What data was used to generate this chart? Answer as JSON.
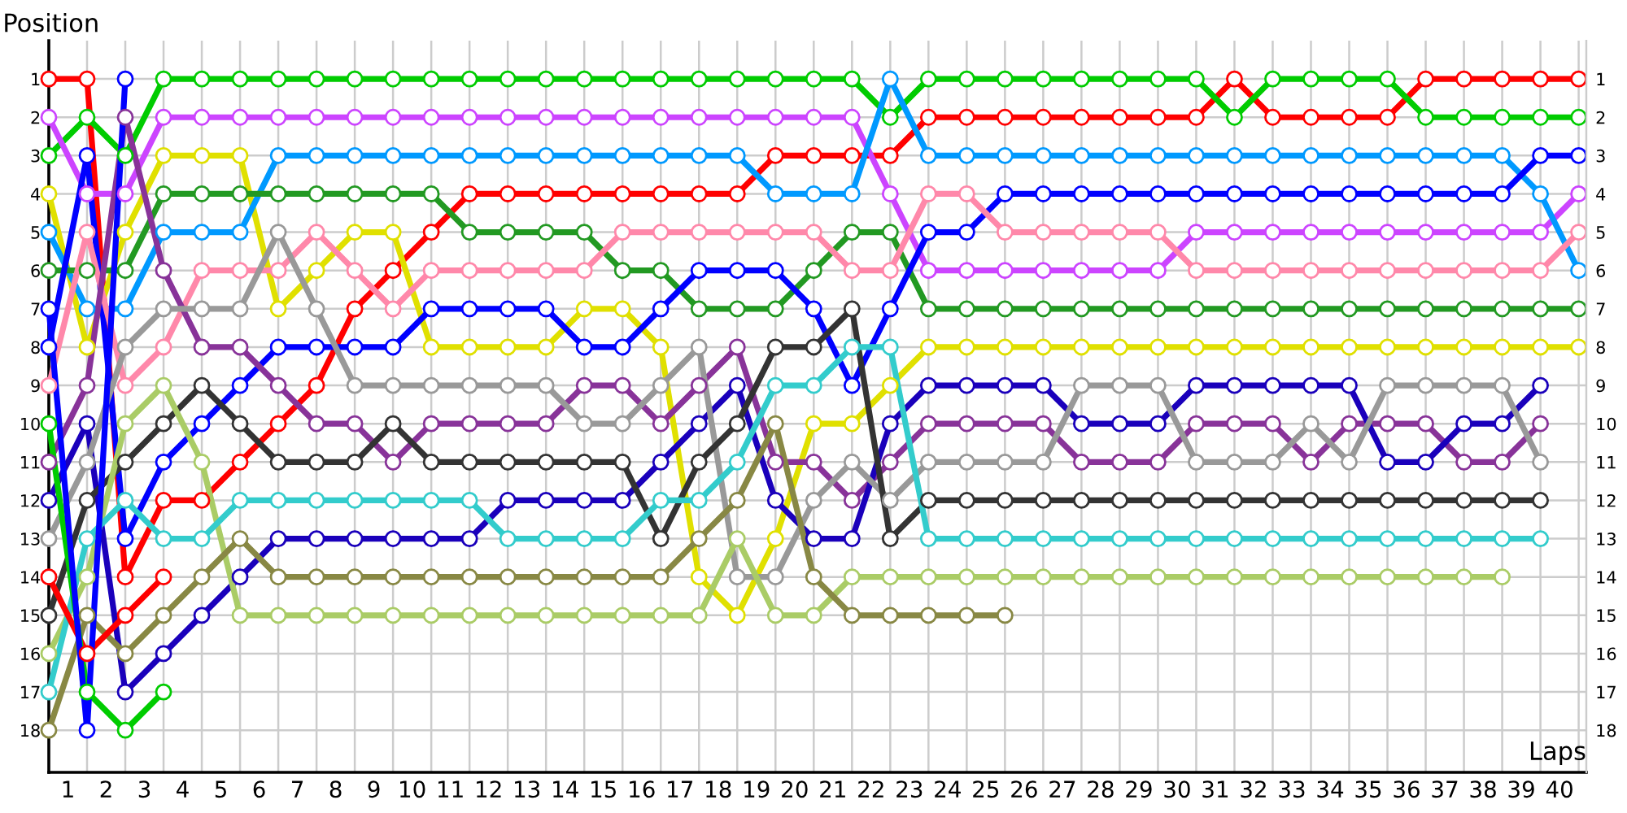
{
  "chart_data": {
    "type": "line",
    "xlabel": "Laps",
    "ylabel": "Position",
    "marker": "circle",
    "line_style": "solid",
    "grid": true,
    "x": [
      0,
      1,
      2,
      3,
      4,
      5,
      6,
      7,
      8,
      9,
      10,
      11,
      12,
      13,
      14,
      15,
      16,
      17,
      18,
      19,
      20,
      21,
      22,
      23,
      24,
      25,
      26,
      27,
      28,
      29,
      30,
      31,
      32,
      33,
      34,
      35,
      36,
      37,
      38,
      39,
      40
    ],
    "xlim": [
      0,
      40.2
    ],
    "xticks": [
      {
        "value": 0.5,
        "label": "1"
      },
      {
        "value": 1.5,
        "label": "2"
      },
      {
        "value": 2.5,
        "label": "3"
      },
      {
        "value": 3.5,
        "label": "4"
      },
      {
        "value": 4.5,
        "label": "5"
      },
      {
        "value": 5.5,
        "label": "6"
      },
      {
        "value": 6.5,
        "label": "7"
      },
      {
        "value": 7.5,
        "label": "8"
      },
      {
        "value": 8.5,
        "label": "9"
      },
      {
        "value": 9.5,
        "label": "10"
      },
      {
        "value": 10.5,
        "label": "11"
      },
      {
        "value": 11.5,
        "label": "12"
      },
      {
        "value": 12.5,
        "label": "13"
      },
      {
        "value": 13.5,
        "label": "14"
      },
      {
        "value": 14.5,
        "label": "15"
      },
      {
        "value": 15.5,
        "label": "16"
      },
      {
        "value": 16.5,
        "label": "17"
      },
      {
        "value": 17.5,
        "label": "18"
      },
      {
        "value": 18.5,
        "label": "19"
      },
      {
        "value": 19.5,
        "label": "20"
      },
      {
        "value": 20.5,
        "label": "21"
      },
      {
        "value": 21.5,
        "label": "22"
      },
      {
        "value": 22.5,
        "label": "23"
      },
      {
        "value": 23.5,
        "label": "24"
      },
      {
        "value": 24.5,
        "label": "25"
      },
      {
        "value": 25.5,
        "label": "26"
      },
      {
        "value": 26.5,
        "label": "27"
      },
      {
        "value": 27.5,
        "label": "28"
      },
      {
        "value": 28.5,
        "label": "29"
      },
      {
        "value": 29.5,
        "label": "30"
      },
      {
        "value": 30.5,
        "label": "31"
      },
      {
        "value": 31.5,
        "label": "32"
      },
      {
        "value": 32.5,
        "label": "33"
      },
      {
        "value": 33.5,
        "label": "34"
      },
      {
        "value": 34.5,
        "label": "35"
      },
      {
        "value": 35.5,
        "label": "36"
      },
      {
        "value": 36.5,
        "label": "37"
      },
      {
        "value": 37.5,
        "label": "38"
      },
      {
        "value": 38.5,
        "label": "39"
      },
      {
        "value": 39.5,
        "label": "40"
      },
      {
        "value": 1,
        "label": null
      },
      {
        "value": 2,
        "label": null
      },
      {
        "value": 3,
        "label": null
      },
      {
        "value": 4,
        "label": null
      },
      {
        "value": 5,
        "label": null
      },
      {
        "value": 6,
        "label": null
      },
      {
        "value": 7,
        "label": null
      },
      {
        "value": 8,
        "label": null
      },
      {
        "value": 9,
        "label": null
      },
      {
        "value": 10,
        "label": null
      },
      {
        "value": 11,
        "label": null
      },
      {
        "value": 12,
        "label": null
      },
      {
        "value": 13,
        "label": null
      },
      {
        "value": 14,
        "label": null
      },
      {
        "value": 15,
        "label": null
      },
      {
        "value": 16,
        "label": null
      },
      {
        "value": 17,
        "label": null
      },
      {
        "value": 18,
        "label": null
      },
      {
        "value": 19,
        "label": null
      },
      {
        "value": 20,
        "label": null
      },
      {
        "value": 21,
        "label": null
      },
      {
        "value": 22,
        "label": null
      },
      {
        "value": 23,
        "label": null
      },
      {
        "value": 24,
        "label": null
      },
      {
        "value": 25,
        "label": null
      },
      {
        "value": 26,
        "label": null
      },
      {
        "value": 27,
        "label": null
      },
      {
        "value": 28,
        "label": null
      },
      {
        "value": 29,
        "label": null
      },
      {
        "value": 30,
        "label": null
      },
      {
        "value": 31,
        "label": null
      },
      {
        "value": 32,
        "label": null
      },
      {
        "value": 33,
        "label": null
      },
      {
        "value": 34,
        "label": null
      },
      {
        "value": 35,
        "label": null
      },
      {
        "value": 36,
        "label": null
      },
      {
        "value": 37,
        "label": null
      },
      {
        "value": 38,
        "label": null
      },
      {
        "value": 39,
        "label": null
      },
      {
        "value": 40,
        "label": null
      }
    ],
    "ylim": [
      19.1,
      0
    ],
    "yticks": [
      1,
      2,
      3,
      4,
      5,
      6,
      7,
      8,
      9,
      10,
      11,
      12,
      13,
      14,
      15,
      16,
      17,
      18
    ],
    "y2lim": [
      19.1,
      0
    ],
    "y2ticks": [
      1,
      2,
      3,
      4,
      5,
      6,
      7,
      8,
      9,
      10,
      11,
      12,
      13,
      14,
      15,
      16,
      17,
      18
    ],
    "series": [
      {
        "color": "#ff0000",
        "values": [
          1,
          1,
          14,
          12,
          12,
          11,
          10,
          9,
          7,
          6,
          5,
          4,
          4,
          4,
          4,
          4,
          4,
          4,
          4,
          3,
          3,
          3,
          3,
          2,
          2,
          2,
          2,
          2,
          2,
          2,
          2,
          1,
          2,
          2,
          2,
          2,
          1,
          1,
          1,
          1,
          1
        ]
      },
      {
        "color": "#00cc00",
        "values": [
          3,
          2,
          3,
          1,
          1,
          1,
          1,
          1,
          1,
          1,
          1,
          1,
          1,
          1,
          1,
          1,
          1,
          1,
          1,
          1,
          1,
          1,
          2,
          1,
          1,
          1,
          1,
          1,
          1,
          1,
          1,
          2,
          1,
          1,
          1,
          1,
          2,
          2,
          2,
          2,
          2
        ]
      },
      {
        "color": "#cc44ff",
        "values": [
          2,
          4,
          4,
          2,
          2,
          2,
          2,
          2,
          2,
          2,
          2,
          2,
          2,
          2,
          2,
          2,
          2,
          2,
          2,
          2,
          2,
          2,
          4,
          6,
          6,
          6,
          6,
          6,
          6,
          6,
          5,
          5,
          5,
          5,
          5,
          5,
          5,
          5,
          5,
          5,
          4
        ]
      },
      {
        "color": "#e0e000",
        "values": [
          4,
          8,
          5,
          3,
          3,
          3,
          7,
          6,
          5,
          5,
          8,
          8,
          8,
          8,
          7,
          7,
          8,
          14,
          15,
          13,
          10,
          10,
          9,
          8,
          8,
          8,
          8,
          8,
          8,
          8,
          8,
          8,
          8,
          8,
          8,
          8,
          8,
          8,
          8,
          8,
          8
        ]
      },
      {
        "color": "#0099ff",
        "values": [
          5,
          7,
          7,
          5,
          5,
          5,
          3,
          3,
          3,
          3,
          3,
          3,
          3,
          3,
          3,
          3,
          3,
          3,
          3,
          4,
          4,
          4,
          1,
          3,
          3,
          3,
          3,
          3,
          3,
          3,
          3,
          3,
          3,
          3,
          3,
          3,
          3,
          3,
          3,
          4,
          6
        ]
      },
      {
        "color": "#229922",
        "values": [
          6,
          6,
          6,
          4,
          4,
          4,
          4,
          4,
          4,
          4,
          4,
          5,
          5,
          5,
          5,
          6,
          6,
          7,
          7,
          7,
          6,
          5,
          5,
          7,
          7,
          7,
          7,
          7,
          7,
          7,
          7,
          7,
          7,
          7,
          7,
          7,
          7,
          7,
          7,
          7,
          7
        ]
      },
      {
        "color": "#0000ff",
        "values": [
          8,
          3,
          13,
          11,
          10,
          9,
          8,
          8,
          8,
          8,
          7,
          7,
          7,
          7,
          8,
          8,
          7,
          6,
          6,
          6,
          7,
          9,
          7,
          5,
          5,
          4,
          4,
          4,
          4,
          4,
          4,
          4,
          4,
          4,
          4,
          4,
          4,
          4,
          4,
          3,
          3
        ]
      },
      {
        "color": "#ff88aa",
        "values": [
          9,
          5,
          9,
          8,
          6,
          6,
          6,
          5,
          6,
          7,
          6,
          6,
          6,
          6,
          6,
          5,
          5,
          5,
          5,
          5,
          5,
          6,
          6,
          4,
          4,
          5,
          5,
          5,
          5,
          5,
          6,
          6,
          6,
          6,
          6,
          6,
          6,
          6,
          6,
          6,
          5
        ]
      },
      {
        "color": "#883399",
        "values": [
          11,
          9,
          2,
          6,
          8,
          8,
          9,
          10,
          10,
          11,
          10,
          10,
          10,
          10,
          9,
          9,
          10,
          9,
          8,
          11,
          11,
          12,
          11,
          10,
          10,
          10,
          10,
          11,
          11,
          11,
          10,
          10,
          10,
          11,
          10,
          10,
          10,
          11,
          11,
          10,
          null
        ]
      },
      {
        "color": "#1a00bb",
        "values": [
          12,
          10,
          17,
          16,
          15,
          14,
          13,
          13,
          13,
          13,
          13,
          13,
          12,
          12,
          12,
          12,
          11,
          10,
          9,
          12,
          13,
          13,
          10,
          9,
          9,
          9,
          9,
          10,
          10,
          10,
          9,
          9,
          9,
          9,
          9,
          11,
          11,
          10,
          10,
          9,
          null
        ]
      },
      {
        "color": "#999999",
        "values": [
          13,
          11,
          8,
          7,
          7,
          7,
          5,
          7,
          9,
          9,
          9,
          9,
          9,
          9,
          10,
          10,
          9,
          8,
          14,
          14,
          12,
          11,
          12,
          11,
          11,
          11,
          11,
          9,
          9,
          9,
          11,
          11,
          11,
          10,
          11,
          9,
          9,
          9,
          9,
          11,
          null
        ]
      },
      {
        "color": "#333333",
        "values": [
          15,
          12,
          11,
          10,
          9,
          10,
          11,
          11,
          11,
          10,
          11,
          11,
          11,
          11,
          11,
          11,
          13,
          11,
          10,
          8,
          8,
          7,
          13,
          12,
          12,
          12,
          12,
          12,
          12,
          12,
          12,
          12,
          12,
          12,
          12,
          12,
          12,
          12,
          12,
          12,
          null
        ]
      },
      {
        "color": "#aacc66",
        "values": [
          16,
          14,
          10,
          9,
          11,
          15,
          15,
          15,
          15,
          15,
          15,
          15,
          15,
          15,
          15,
          15,
          15,
          15,
          13,
          15,
          15,
          14,
          14,
          14,
          14,
          14,
          14,
          14,
          14,
          14,
          14,
          14,
          14,
          14,
          14,
          14,
          14,
          14,
          14,
          null,
          null
        ]
      },
      {
        "color": "#33cccc",
        "values": [
          17,
          13,
          12,
          13,
          13,
          12,
          12,
          12,
          12,
          12,
          12,
          12,
          13,
          13,
          13,
          13,
          12,
          12,
          11,
          9,
          9,
          8,
          8,
          13,
          13,
          13,
          13,
          13,
          13,
          13,
          13,
          13,
          13,
          13,
          13,
          13,
          13,
          13,
          13,
          13,
          null
        ]
      },
      {
        "color": "#888844",
        "values": [
          18,
          15,
          16,
          15,
          14,
          13,
          14,
          14,
          14,
          14,
          14,
          14,
          14,
          14,
          14,
          14,
          14,
          13,
          12,
          10,
          14,
          15,
          15,
          15,
          15,
          15,
          null,
          null,
          null,
          null,
          null,
          null,
          null,
          null,
          null,
          null,
          null,
          null,
          null,
          null,
          null
        ]
      },
      {
        "color": "#ff0000",
        "values": [
          14,
          16,
          15,
          14,
          null,
          null,
          null,
          null,
          null,
          null,
          null,
          null,
          null,
          null,
          null,
          null,
          null,
          null,
          null,
          null,
          null,
          null,
          null,
          null,
          null,
          null,
          null,
          null,
          null,
          null,
          null,
          null,
          null,
          null,
          null,
          null,
          null,
          null,
          null,
          null,
          null
        ]
      },
      {
        "color": "#00cc00",
        "values": [
          10,
          17,
          18,
          17,
          null,
          null,
          null,
          null,
          null,
          null,
          null,
          null,
          null,
          null,
          null,
          null,
          null,
          null,
          null,
          null,
          null,
          null,
          null,
          null,
          null,
          null,
          null,
          null,
          null,
          null,
          null,
          null,
          null,
          null,
          null,
          null,
          null,
          null,
          null,
          null,
          null
        ]
      },
      {
        "color": "#0000ff",
        "values": [
          7,
          18,
          1,
          null,
          null,
          null,
          null,
          null,
          null,
          null,
          null,
          null,
          null,
          null,
          null,
          null,
          null,
          null,
          null,
          null,
          null,
          null,
          null,
          null,
          null,
          null,
          null,
          null,
          null,
          null,
          null,
          null,
          null,
          null,
          null,
          null,
          null,
          null,
          null,
          null,
          null
        ]
      }
    ]
  }
}
